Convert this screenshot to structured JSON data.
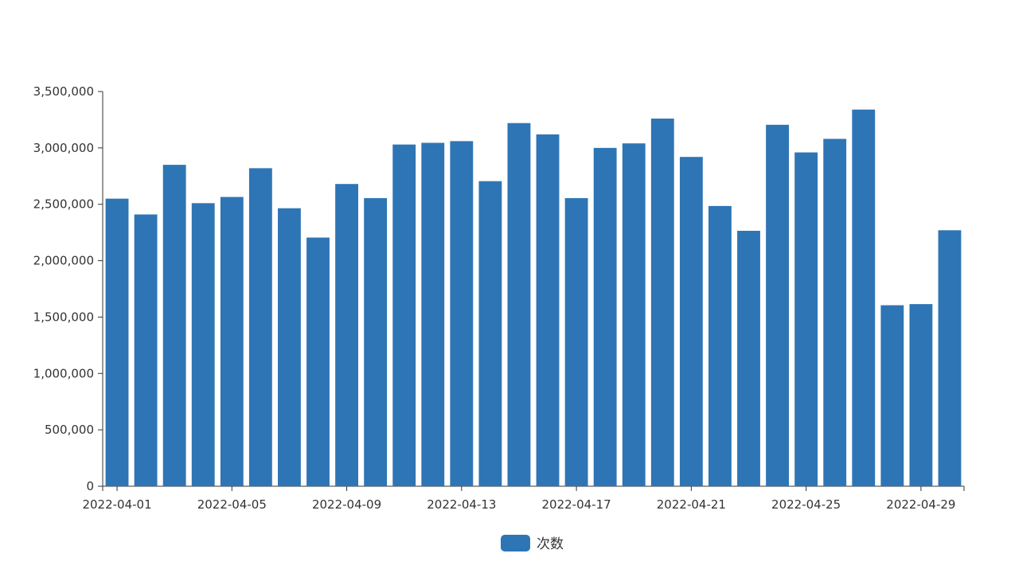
{
  "chart_data": {
    "type": "bar",
    "categories": [
      "2022-04-01",
      "2022-04-02",
      "2022-04-03",
      "2022-04-04",
      "2022-04-05",
      "2022-04-06",
      "2022-04-07",
      "2022-04-08",
      "2022-04-09",
      "2022-04-10",
      "2022-04-11",
      "2022-04-12",
      "2022-04-13",
      "2022-04-14",
      "2022-04-15",
      "2022-04-16",
      "2022-04-17",
      "2022-04-18",
      "2022-04-19",
      "2022-04-20",
      "2022-04-21",
      "2022-04-22",
      "2022-04-23",
      "2022-04-24",
      "2022-04-25",
      "2022-04-26",
      "2022-04-27",
      "2022-04-28",
      "2022-04-29",
      "2022-04-30"
    ],
    "series": [
      {
        "name": "次数",
        "color": "#2e75b6",
        "values": [
          2550000,
          2410000,
          2850000,
          2510000,
          2565000,
          2820000,
          2465000,
          2205000,
          2680000,
          2555000,
          3030000,
          3045000,
          3060000,
          2705000,
          3220000,
          3120000,
          2555000,
          3000000,
          3040000,
          3260000,
          2920000,
          2485000,
          2265000,
          3205000,
          2960000,
          3080000,
          3340000,
          1605000,
          1615000,
          2270000
        ]
      }
    ],
    "x_tick_labels": [
      "2022-04-01",
      "2022-04-05",
      "2022-04-09",
      "2022-04-13",
      "2022-04-17",
      "2022-04-21",
      "2022-04-25",
      "2022-04-29"
    ],
    "y_tick_labels": [
      "0",
      "500,000",
      "1,000,000",
      "1,500,000",
      "2,000,000",
      "2,500,000",
      "3,000,000",
      "3,500,000"
    ],
    "ylim": [
      0,
      3500000
    ],
    "y_tick_step": 500000,
    "grid": false,
    "legend": "bottom-center",
    "title": "",
    "xlabel": "",
    "ylabel": ""
  }
}
